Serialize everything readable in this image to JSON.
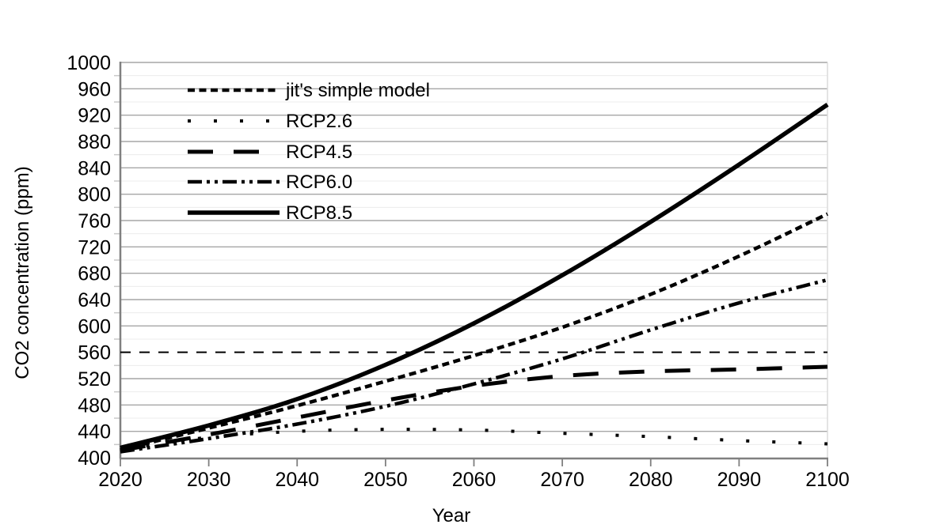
{
  "chart_data": {
    "type": "line",
    "title": "",
    "xlabel": "Year",
    "ylabel": "CO2 concentration (ppm)",
    "xlim": [
      2020,
      2100
    ],
    "ylim": [
      400,
      1000
    ],
    "x_ticks": [
      2020,
      2030,
      2040,
      2050,
      2060,
      2070,
      2080,
      2090,
      2100
    ],
    "y_ticks": [
      400,
      440,
      480,
      520,
      560,
      600,
      640,
      680,
      720,
      760,
      800,
      840,
      880,
      920,
      960,
      1000
    ],
    "y_minor_step": 20,
    "grid": "horizontal major and minor gridlines, no vertical gridlines",
    "legend_position": "inside top-left",
    "x": [
      2020,
      2030,
      2040,
      2050,
      2060,
      2070,
      2080,
      2090,
      2100
    ],
    "series": [
      {
        "name": "jit's simple model",
        "style": "short-dash",
        "values": [
          412,
          445,
          479,
          516,
          555,
          598,
          648,
          706,
          770
        ]
      },
      {
        "name": "RCP2.6",
        "style": "dot",
        "values": [
          412,
          431,
          440,
          443,
          442,
          437,
          432,
          426,
          421
        ]
      },
      {
        "name": "RCP4.5",
        "style": "long-dash",
        "values": [
          411,
          435,
          461,
          487,
          509,
          524,
          531,
          534,
          538
        ]
      },
      {
        "name": "RCP6.0",
        "style": "long-dash-dot-dot",
        "values": [
          409,
          429,
          451,
          478,
          512,
          550,
          594,
          635,
          670
        ]
      },
      {
        "name": "RCP8.5",
        "style": "solid",
        "values": [
          415,
          449,
          489,
          541,
          604,
          677,
          758,
          845,
          936
        ]
      }
    ],
    "reference_line": {
      "value": 560,
      "style": "thin-dash"
    }
  },
  "colors": {
    "series_line": "#000000",
    "reference_line": "#000000",
    "major_grid": "#a6a6a6",
    "minor_grid": "#ececec",
    "axis": "#808080",
    "minor_tick": "#c9c9c9",
    "background": "#ffffff",
    "text": "#000000"
  }
}
